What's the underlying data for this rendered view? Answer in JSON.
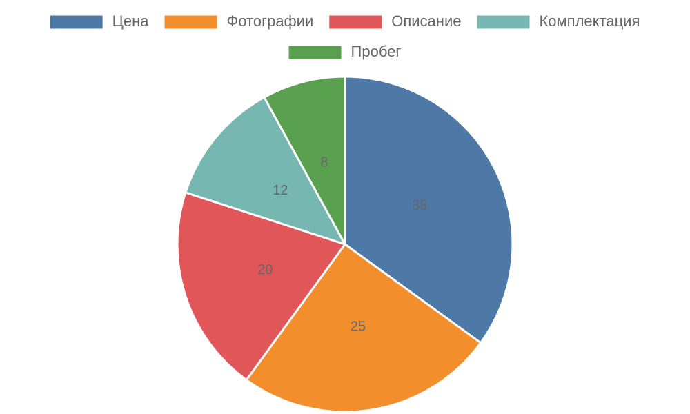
{
  "chart_data": {
    "type": "pie",
    "categories": [
      "Цена",
      "Фотографии",
      "Описание",
      "Комплектация",
      "Пробег"
    ],
    "values": [
      35,
      25,
      20,
      12,
      8
    ],
    "colors": [
      "#4e79a7",
      "#f28e2b",
      "#e15759",
      "#76b7b2",
      "#59a14f"
    ],
    "legend": "top"
  }
}
